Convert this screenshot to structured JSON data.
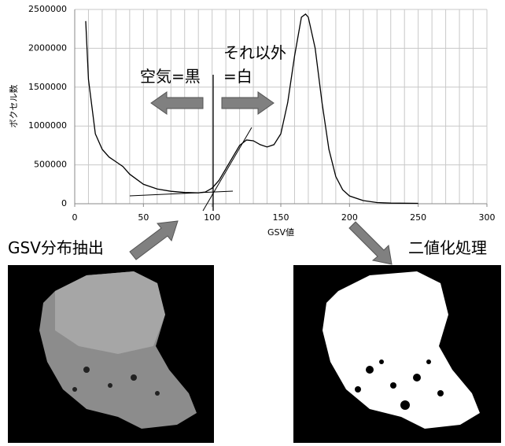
{
  "chart_data": {
    "type": "line",
    "x_label": "GSV値",
    "y_label": "ボクセル数",
    "x": [
      8,
      10,
      15,
      20,
      25,
      30,
      35,
      40,
      50,
      60,
      70,
      80,
      90,
      95,
      100,
      105,
      110,
      115,
      120,
      125,
      130,
      135,
      140,
      145,
      150,
      155,
      160,
      165,
      168,
      170,
      175,
      180,
      185,
      190,
      195,
      200,
      210,
      220,
      230,
      250
    ],
    "series": [
      {
        "color": "#000000",
        "values": [
          2350000,
          1600000,
          900000,
          700000,
          600000,
          540000,
          480000,
          380000,
          250000,
          190000,
          160000,
          145000,
          140000,
          150000,
          200000,
          300000,
          450000,
          600000,
          750000,
          820000,
          810000,
          760000,
          730000,
          760000,
          900000,
          1300000,
          1900000,
          2400000,
          2440000,
          2400000,
          2000000,
          1300000,
          700000,
          350000,
          180000,
          100000,
          40000,
          15000,
          8000,
          5000
        ]
      }
    ],
    "xlim": [
      0,
      300
    ],
    "xticks": [
      0,
      50,
      100,
      150,
      200,
      250,
      300
    ],
    "ylim": [
      0,
      2500000
    ],
    "yticks": [
      0,
      500000,
      1000000,
      1500000,
      2000000,
      2500000
    ],
    "grid": true,
    "annotations": [
      "空気=黒",
      "それ以外",
      "=白"
    ]
  },
  "steps": [
    "GSV分布抽出",
    "二値化処理"
  ]
}
